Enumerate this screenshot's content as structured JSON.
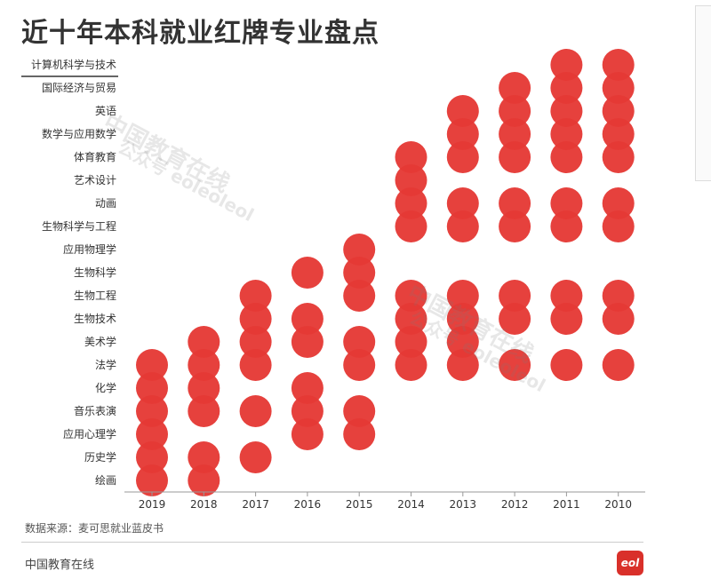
{
  "title": "近十年本科就业红牌专业盘点",
  "source_note": "数据来源：麦可思就业蓝皮书",
  "publisher": "中国教育在线",
  "logo_text": "eol",
  "watermarks": [
    "中国教育在线",
    "公众号 eoleoleol",
    "中国教育在线",
    "公众号 eoleoleol"
  ],
  "colors": {
    "dot": "#e53935",
    "accent_line": "#333333",
    "axis": "#999999",
    "text": "#333333"
  },
  "chart_data": {
    "type": "scatter",
    "title": "近十年本科就业红牌专业盘点",
    "years": [
      "2019",
      "2018",
      "2017",
      "2016",
      "2015",
      "2014",
      "2013",
      "2012",
      "2011",
      "2010"
    ],
    "majors": [
      "计算机科学与技术",
      "国际经济与贸易",
      "英语",
      "数学与应用数学",
      "体育教育",
      "艺术设计",
      "动画",
      "生物科学与工程",
      "应用物理学",
      "生物科学",
      "生物工程",
      "生物技术",
      "美术学",
      "法学",
      "化学",
      "音乐表演",
      "应用心理学",
      "历史学",
      "绘画"
    ],
    "red_card": {
      "2019": [
        "法学",
        "化学",
        "音乐表演",
        "应用心理学",
        "历史学",
        "绘画"
      ],
      "2018": [
        "美术学",
        "法学",
        "化学",
        "音乐表演",
        "历史学",
        "绘画"
      ],
      "2017": [
        "生物工程",
        "生物技术",
        "美术学",
        "法学",
        "音乐表演",
        "历史学"
      ],
      "2016": [
        "生物科学",
        "生物技术",
        "美术学",
        "化学",
        "音乐表演",
        "应用心理学"
      ],
      "2015": [
        "应用物理学",
        "生物科学",
        "生物工程",
        "美术学",
        "法学",
        "音乐表演",
        "应用心理学"
      ],
      "2014": [
        "体育教育",
        "艺术设计",
        "动画",
        "生物科学与工程",
        "生物工程",
        "生物技术",
        "美术学",
        "法学"
      ],
      "2013": [
        "英语",
        "数学与应用数学",
        "体育教育",
        "动画",
        "生物科学与工程",
        "生物工程",
        "生物技术",
        "美术学",
        "法学"
      ],
      "2012": [
        "国际经济与贸易",
        "英语",
        "数学与应用数学",
        "体育教育",
        "动画",
        "生物科学与工程",
        "生物工程",
        "生物技术",
        "法学"
      ],
      "2011": [
        "计算机科学与技术",
        "国际经济与贸易",
        "英语",
        "数学与应用数学",
        "体育教育",
        "动画",
        "生物科学与工程",
        "生物工程",
        "生物技术",
        "法学"
      ],
      "2010": [
        "计算机科学与技术",
        "国际经济与贸易",
        "英语",
        "数学与应用数学",
        "体育教育",
        "动画",
        "生物科学与工程",
        "生物工程",
        "生物技术",
        "法学"
      ]
    },
    "xlabel": "",
    "ylabel": "",
    "grid": false,
    "legend": "none"
  }
}
